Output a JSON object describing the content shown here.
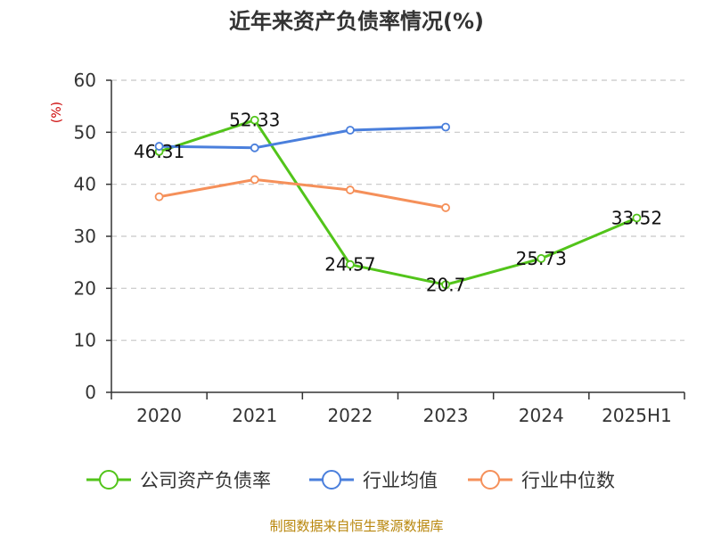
{
  "chart_data": {
    "type": "line",
    "title": "近年来资产负债率情况(%)",
    "ylabel": "(%)",
    "xlabel": "",
    "ylim": [
      0,
      60
    ],
    "yticks": [
      0,
      10,
      20,
      30,
      40,
      50,
      60
    ],
    "grid": true,
    "legend": "bottom",
    "categories": [
      "2020",
      "2021",
      "2022",
      "2023",
      "2024",
      "2025H1"
    ],
    "series": [
      {
        "name": "公司资产负债率",
        "color": "#52c41a",
        "values": [
          46.31,
          52.33,
          24.57,
          20.7,
          25.73,
          33.52
        ],
        "labels": [
          "46.31",
          "52.33",
          "24.57",
          "20.7",
          "25.73",
          "33.52"
        ]
      },
      {
        "name": "行业均值",
        "color": "#4a7fdc",
        "values": [
          47.3,
          47.0,
          50.4,
          51.0,
          null,
          null
        ]
      },
      {
        "name": "行业中位数",
        "color": "#f5905a",
        "values": [
          37.6,
          40.9,
          38.9,
          35.5,
          null,
          null
        ]
      }
    ],
    "source": "制图数据来自恒生聚源数据库"
  }
}
